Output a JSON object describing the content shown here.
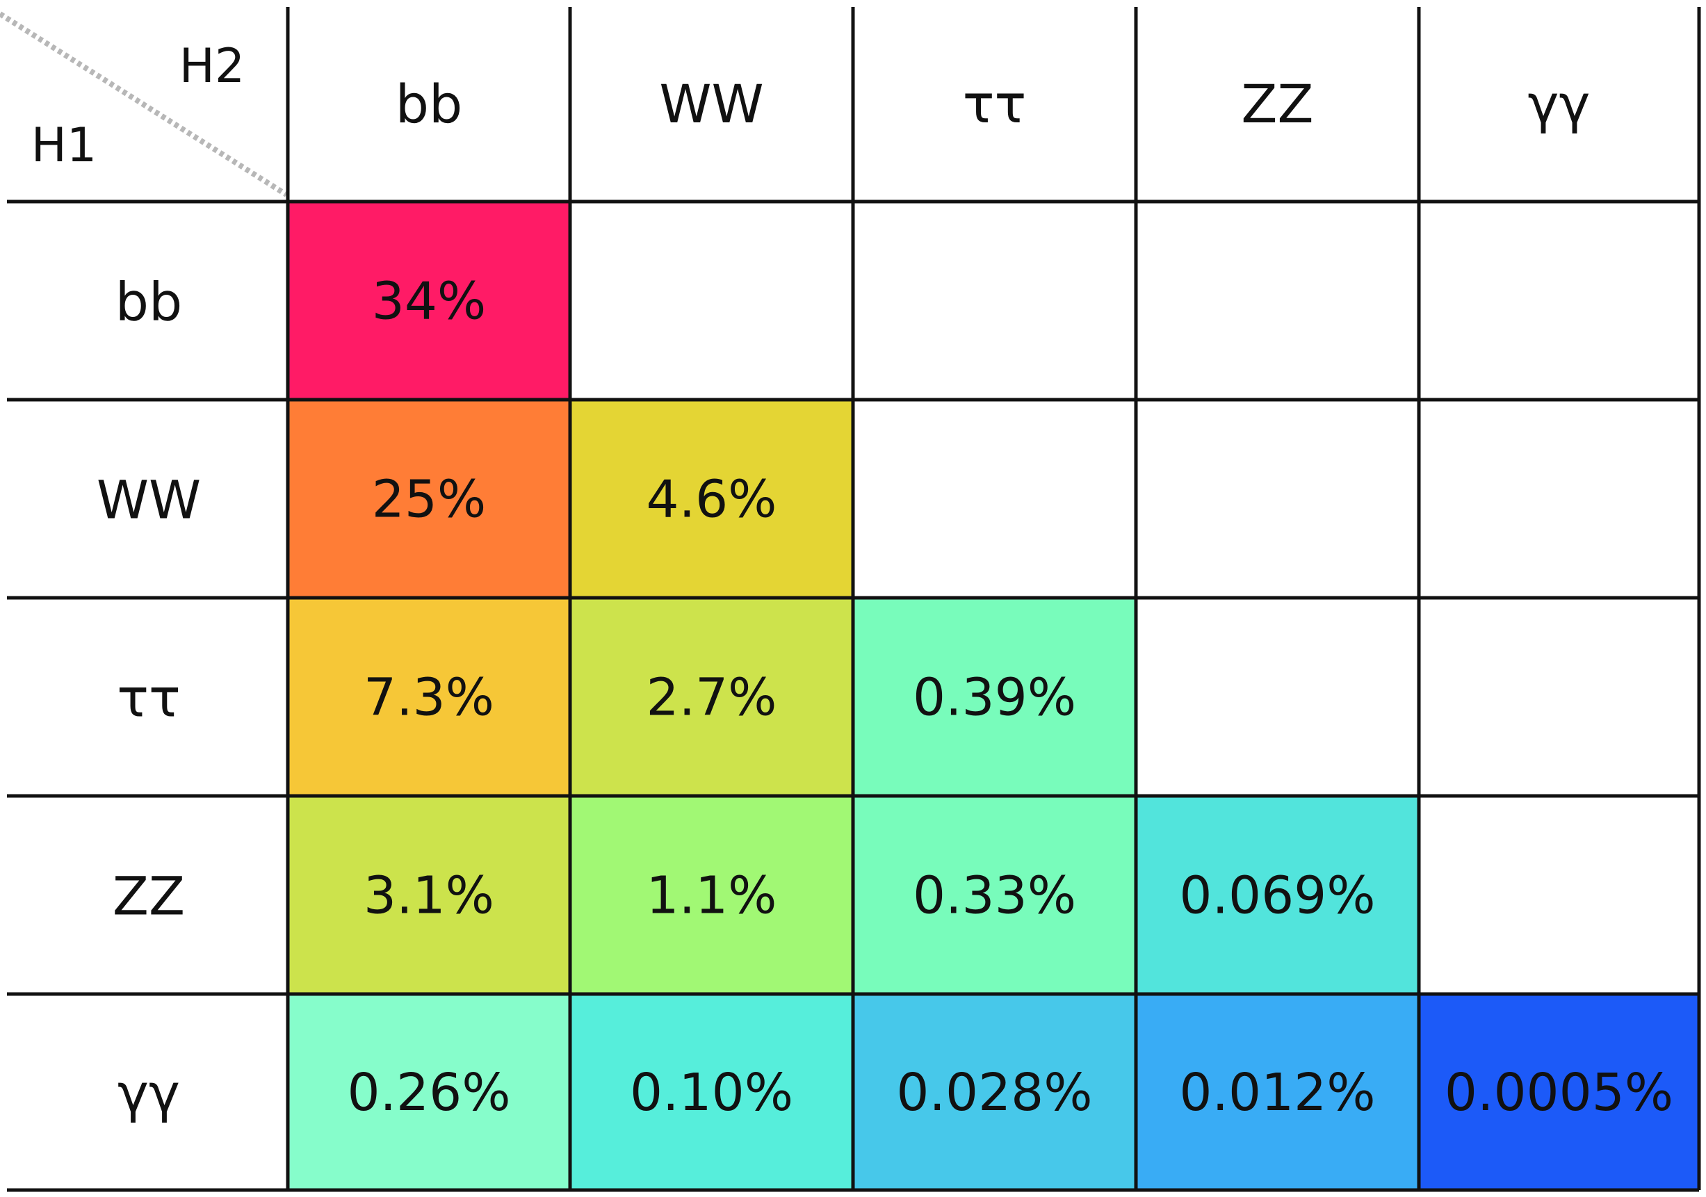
{
  "chart_data": {
    "type": "heatmap",
    "corner": {
      "column_header": "H2",
      "row_header": "H1"
    },
    "columns": [
      "bb",
      "WW",
      "ττ",
      "ZZ",
      "γγ"
    ],
    "rows": [
      "bb",
      "WW",
      "ττ",
      "ZZ",
      "γγ"
    ],
    "cells": [
      [
        {
          "label": "34%",
          "value": 34,
          "color": "#ff1b66"
        },
        null,
        null,
        null,
        null
      ],
      [
        {
          "label": "25%",
          "value": 25,
          "color": "#ff7d36"
        },
        {
          "label": "4.6%",
          "value": 4.6,
          "color": "#e4d534"
        },
        null,
        null,
        null
      ],
      [
        {
          "label": "7.3%",
          "value": 7.3,
          "color": "#f6c737"
        },
        {
          "label": "2.7%",
          "value": 2.7,
          "color": "#cde34c"
        },
        {
          "label": "0.39%",
          "value": 0.39,
          "color": "#78fcbb"
        },
        null,
        null
      ],
      [
        {
          "label": "3.1%",
          "value": 3.1,
          "color": "#cce34c"
        },
        {
          "label": "1.1%",
          "value": 1.1,
          "color": "#a1f874"
        },
        {
          "label": "0.33%",
          "value": 0.33,
          "color": "#78fcbb"
        },
        {
          "label": "0.069%",
          "value": 0.069,
          "color": "#52e4dc"
        },
        null
      ],
      [
        {
          "label": "0.26%",
          "value": 0.26,
          "color": "#86fdcb"
        },
        {
          "label": "0.10%",
          "value": 0.1,
          "color": "#56eedb"
        },
        {
          "label": "0.028%",
          "value": 0.028,
          "color": "#47c8ea"
        },
        {
          "label": "0.012%",
          "value": 0.012,
          "color": "#39acf5"
        },
        {
          "label": "0.0005%",
          "value": 0.0005,
          "color": "#1c5af8"
        }
      ]
    ],
    "grid": true,
    "empty_cell_color": "#ffffff",
    "line_color": "#111111",
    "text_color": "#111111"
  }
}
